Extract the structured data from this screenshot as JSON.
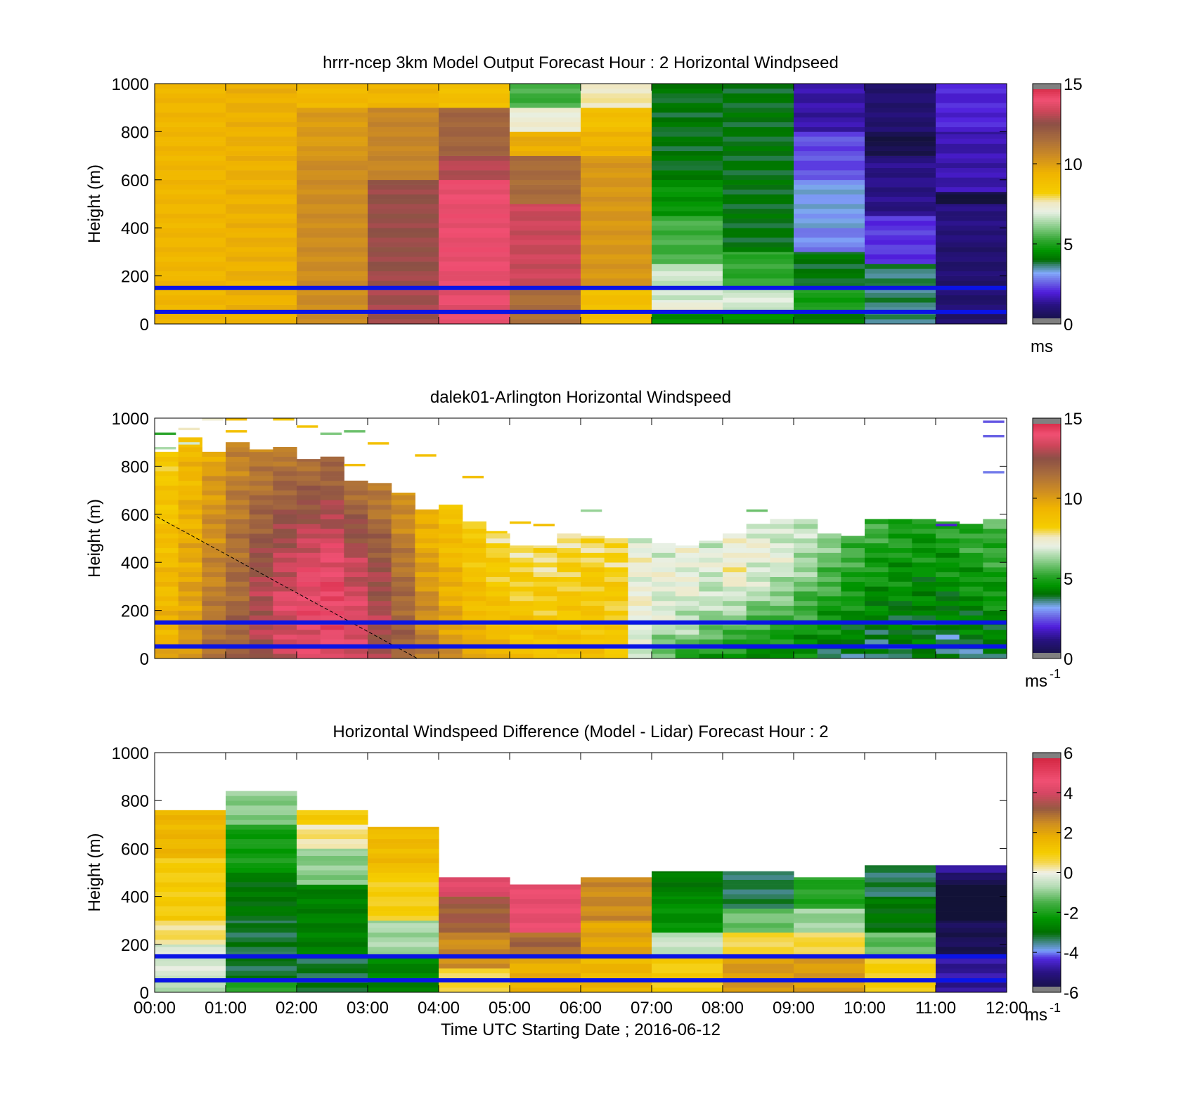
{
  "chart_data": [
    {
      "type": "heatmap",
      "title": "hrrr-ncep 3km Model Output   Forecast Hour : 2 Horizontal Windpseed",
      "ylabel": "Height (m)",
      "xlabel": "",
      "ylim": [
        0,
        1000
      ],
      "xlim_hours": [
        0,
        12
      ],
      "yticks": [
        "0",
        "200",
        "400",
        "600",
        "800",
        "1000"
      ],
      "colorbar": {
        "range": [
          0,
          15
        ],
        "ticks": [
          "0",
          "5",
          "10",
          "15"
        ],
        "unit": "ms",
        "unit_sup": ""
      },
      "reference_lines_m": [
        50,
        150
      ],
      "kind": "model",
      "columns": [
        {
          "hour": 0,
          "top_m": 1000,
          "segments": [
            [
              0,
              1000,
              9.3
            ]
          ]
        },
        {
          "hour": 1,
          "top_m": 1000,
          "segments": [
            [
              0,
              1000,
              9.5
            ]
          ]
        },
        {
          "hour": 2,
          "top_m": 1000,
          "segments": [
            [
              0,
              700,
              10.5
            ],
            [
              700,
              900,
              10.1
            ],
            [
              900,
              1000,
              9.2
            ]
          ]
        },
        {
          "hour": 3,
          "top_m": 1000,
          "segments": [
            [
              0,
              200,
              12.8
            ],
            [
              200,
              600,
              12.6
            ],
            [
              600,
              900,
              10.7
            ],
            [
              900,
              1000,
              9.3
            ]
          ]
        },
        {
          "hour": 4,
          "top_m": 1000,
          "segments": [
            [
              0,
              200,
              13.8
            ],
            [
              200,
              600,
              13.9
            ],
            [
              600,
              700,
              13.0
            ],
            [
              700,
              900,
              11.8
            ],
            [
              900,
              1000,
              8.9
            ]
          ]
        },
        {
          "hour": 5,
          "top_m": 1000,
          "segments": [
            [
              0,
              150,
              11.5
            ],
            [
              150,
              500,
              13.3
            ],
            [
              500,
              700,
              11.6
            ],
            [
              700,
              800,
              9.6
            ],
            [
              800,
              900,
              7.3
            ],
            [
              900,
              1000,
              5.4
            ]
          ]
        },
        {
          "hour": 6,
          "top_m": 1000,
          "segments": [
            [
              0,
              150,
              8.9
            ],
            [
              150,
              700,
              10.2
            ],
            [
              700,
              800,
              9.4
            ],
            [
              800,
              900,
              8.9
            ],
            [
              900,
              1000,
              7.6
            ]
          ]
        },
        {
          "hour": 7,
          "top_m": 1000,
          "segments": [
            [
              0,
              50,
              4.5
            ],
            [
              50,
              100,
              7.2
            ],
            [
              100,
              250,
              6.7
            ],
            [
              250,
              450,
              5.4
            ],
            [
              450,
              600,
              4.6
            ],
            [
              600,
              1000,
              4.0
            ]
          ]
        },
        {
          "hour": 8,
          "top_m": 1000,
          "segments": [
            [
              0,
              50,
              4.4
            ],
            [
              50,
              150,
              6.8
            ],
            [
              150,
              300,
              5.2
            ],
            [
              300,
              1000,
              4.0
            ]
          ]
        },
        {
          "hour": 9,
          "top_m": 1000,
          "segments": [
            [
              0,
              50,
              4.2
            ],
            [
              50,
              150,
              4.9
            ],
            [
              150,
              300,
              4.0
            ],
            [
              300,
              400,
              2.9
            ],
            [
              400,
              600,
              3.2
            ],
            [
              600,
              800,
              2.4
            ],
            [
              800,
              1000,
              1.5
            ]
          ]
        },
        {
          "hour": 10,
          "top_m": 1000,
          "segments": [
            [
              0,
              50,
              3.6
            ],
            [
              50,
              250,
              3.7
            ],
            [
              250,
              450,
              2.2
            ],
            [
              450,
              700,
              1.2
            ],
            [
              700,
              800,
              0.3
            ],
            [
              800,
              1000,
              0.9
            ]
          ]
        },
        {
          "hour": 11,
          "top_m": 1000,
          "segments": [
            [
              0,
              350,
              0.9
            ],
            [
              350,
              500,
              1.1
            ],
            [
              500,
              550,
              0.2
            ],
            [
              550,
              800,
              1.6
            ],
            [
              800,
              1000,
              2.0
            ]
          ]
        }
      ]
    },
    {
      "type": "heatmap",
      "title": "dalek01-Arlington  Horizontal Windspeed",
      "ylabel": "Height (m)",
      "xlabel": "",
      "ylim": [
        0,
        1000
      ],
      "xlim_hours": [
        0,
        12
      ],
      "yticks": [
        "0",
        "200",
        "400",
        "600",
        "800",
        "1000"
      ],
      "colorbar": {
        "range": [
          0,
          15
        ],
        "ticks": [
          "0",
          "5",
          "10",
          "15"
        ],
        "unit": "ms",
        "unit_sup": "-1"
      },
      "reference_lines_m": [
        50,
        150
      ],
      "kind": "lidar",
      "lidar_tops_m": [
        860,
        920,
        860,
        900,
        870,
        880,
        830,
        840,
        740,
        730,
        690,
        620,
        640,
        570,
        520,
        470,
        470,
        520,
        510,
        500,
        500,
        480,
        470,
        490,
        520,
        560,
        580,
        580,
        520,
        510,
        580,
        580,
        580,
        570,
        560,
        580
      ],
      "lidar_profile": [
        [
          9.6,
          9.2,
          9.0,
          8.6,
          8.4
        ],
        [
          10.2,
          9.9,
          9.6,
          9.3,
          9.1
        ],
        [
          11.4,
          11.0,
          10.6,
          10.2,
          9.8
        ],
        [
          12.0,
          11.7,
          11.4,
          11.0,
          10.6
        ],
        [
          12.8,
          13.0,
          12.4,
          11.6,
          10.8
        ],
        [
          13.2,
          13.6,
          13.0,
          12.0,
          11.0
        ],
        [
          13.5,
          14.0,
          13.6,
          12.4,
          11.3
        ],
        [
          13.6,
          14.2,
          13.8,
          12.6,
          11.4
        ],
        [
          13.3,
          13.6,
          13.2,
          12.3,
          11.2
        ],
        [
          12.8,
          12.8,
          12.6,
          11.6,
          10.8
        ],
        [
          12.0,
          11.8,
          11.4,
          10.8,
          10.2
        ],
        [
          11.2,
          10.6,
          10.2,
          9.6,
          9.2
        ],
        [
          10.4,
          9.8,
          9.4,
          9.0,
          8.8
        ],
        [
          9.8,
          9.2,
          8.9,
          8.6,
          8.4
        ],
        [
          9.4,
          8.9,
          8.6,
          8.2,
          8.0
        ],
        [
          9.0,
          8.7,
          8.4,
          8.1,
          7.9
        ],
        [
          9.0,
          8.6,
          8.4,
          8.0,
          7.8
        ],
        [
          8.8,
          8.6,
          8.4,
          8.1,
          7.8
        ],
        [
          8.8,
          8.6,
          8.5,
          8.2,
          7.8
        ],
        [
          8.4,
          8.4,
          8.3,
          8.2,
          7.6
        ],
        [
          6.6,
          7.0,
          7.3,
          7.2,
          7.0
        ],
        [
          5.6,
          6.6,
          7.0,
          7.1,
          6.9
        ],
        [
          5.2,
          6.4,
          6.9,
          7.2,
          7.0
        ],
        [
          4.8,
          6.0,
          6.6,
          6.9,
          6.8
        ],
        [
          4.6,
          5.8,
          7.0,
          7.6,
          7.0
        ],
        [
          4.3,
          5.4,
          6.6,
          7.2,
          6.8
        ],
        [
          4.2,
          5.2,
          6.4,
          7.0,
          6.6
        ],
        [
          4.4,
          5.0,
          5.8,
          6.6,
          6.4
        ],
        [
          4.0,
          4.6,
          5.2,
          5.8,
          6.0
        ],
        [
          3.8,
          4.4,
          4.8,
          5.2,
          5.6
        ],
        [
          3.6,
          4.2,
          4.6,
          5.0,
          5.4
        ],
        [
          3.8,
          4.1,
          4.5,
          4.8,
          5.2
        ],
        [
          4.0,
          4.0,
          4.4,
          4.7,
          5.0
        ],
        [
          3.6,
          4.0,
          4.4,
          4.8,
          5.1
        ],
        [
          3.8,
          4.2,
          4.6,
          5.0,
          5.3
        ],
        [
          4.0,
          4.4,
          4.8,
          5.2,
          5.6
        ]
      ],
      "lidar_fragments": [
        [
          0,
          930,
          5.2
        ],
        [
          0,
          870,
          6.4
        ],
        [
          1,
          950,
          7.6
        ],
        [
          1,
          890,
          6.8
        ],
        [
          2,
          990,
          7.4
        ],
        [
          3,
          990,
          9.0
        ],
        [
          3,
          940,
          8.8
        ],
        [
          5,
          990,
          8.6
        ],
        [
          6,
          960,
          8.7
        ],
        [
          7,
          930,
          6.0
        ],
        [
          8,
          940,
          5.8
        ],
        [
          9,
          890,
          8.8
        ],
        [
          8,
          800,
          8.9
        ],
        [
          11,
          840,
          8.8
        ],
        [
          13,
          750,
          8.9
        ],
        [
          15,
          560,
          8.7
        ],
        [
          14,
          520,
          8.2
        ],
        [
          16,
          550,
          8.9
        ],
        [
          18,
          610,
          6.2
        ],
        [
          25,
          610,
          5.8
        ],
        [
          35,
          980,
          2.5
        ],
        [
          35,
          920,
          2.6
        ],
        [
          35,
          770,
          2.8
        ],
        [
          33,
          550,
          1.9
        ]
      ],
      "dashed_line_hours_m": [
        [
          0.03,
          590
        ],
        [
          3.7,
          0
        ]
      ]
    },
    {
      "type": "heatmap",
      "title": "Horizontal Windspeed Difference (Model - Lidar) Forecast Hour : 2",
      "ylabel": "Height (m)",
      "xlabel": "Time UTC  Starting Date ; 2016-06-12",
      "ylim": [
        0,
        1000
      ],
      "xlim_hours": [
        0,
        12
      ],
      "yticks": [
        "0",
        "200",
        "400",
        "600",
        "800",
        "1000"
      ],
      "xticks": [
        "00:00",
        "01:00",
        "02:00",
        "03:00",
        "04:00",
        "05:00",
        "06:00",
        "07:00",
        "08:00",
        "09:00",
        "10:00",
        "11:00",
        "12:00"
      ],
      "colorbar": {
        "range": [
          -6,
          6
        ],
        "ticks": [
          "-6",
          "-4",
          "-2",
          "0",
          "2",
          "4",
          "6"
        ],
        "unit": "ms",
        "unit_sup": "-1"
      },
      "reference_lines_m": [
        50,
        150
      ],
      "kind": "difference",
      "columns": [
        {
          "hour": 0,
          "top_m": 760,
          "segments": [
            [
              0,
              50,
              -0.8
            ],
            [
              50,
              200,
              -0.3
            ],
            [
              200,
              300,
              0.4
            ],
            [
              300,
              560,
              1.0
            ],
            [
              560,
              760,
              1.6
            ]
          ]
        },
        {
          "hour": 1,
          "top_m": 840,
          "segments": [
            [
              0,
              50,
              -1.8
            ],
            [
              50,
              300,
              -3.2
            ],
            [
              300,
              500,
              -2.9
            ],
            [
              500,
              700,
              -2.1
            ],
            [
              700,
              840,
              -1.0
            ]
          ]
        },
        {
          "hour": 2,
          "top_m": 760,
          "segments": [
            [
              0,
              150,
              -3.2
            ],
            [
              150,
              450,
              -2.7
            ],
            [
              450,
              600,
              -1.0
            ],
            [
              600,
              700,
              0.3
            ],
            [
              700,
              760,
              1.0
            ]
          ]
        },
        {
          "hour": 3,
          "top_m": 690,
          "segments": [
            [
              0,
              150,
              -2.6
            ],
            [
              150,
              300,
              -0.8
            ],
            [
              300,
              500,
              0.9
            ],
            [
              500,
              690,
              1.5
            ]
          ]
        },
        {
          "hour": 4,
          "top_m": 480,
          "segments": [
            [
              0,
              100,
              0.6
            ],
            [
              100,
              250,
              2.5
            ],
            [
              250,
              400,
              3.2
            ],
            [
              400,
              480,
              4.2
            ]
          ]
        },
        {
          "hour": 5,
          "top_m": 450,
          "segments": [
            [
              0,
              150,
              1.8
            ],
            [
              150,
              250,
              3.0
            ],
            [
              250,
              450,
              4.4
            ]
          ]
        },
        {
          "hour": 6,
          "top_m": 480,
          "segments": [
            [
              0,
              150,
              1.6
            ],
            [
              150,
              300,
              2.0
            ],
            [
              300,
              480,
              2.5
            ]
          ]
        },
        {
          "hour": 7,
          "top_m": 505,
          "segments": [
            [
              0,
              150,
              1.0
            ],
            [
              150,
              250,
              -0.5
            ],
            [
              250,
              400,
              -2.4
            ],
            [
              400,
              505,
              -2.8
            ]
          ]
        },
        {
          "hour": 8,
          "top_m": 505,
          "segments": [
            [
              0,
              150,
              2.2
            ],
            [
              150,
              250,
              0.6
            ],
            [
              250,
              350,
              -1.2
            ],
            [
              350,
              505,
              -3.3
            ]
          ]
        },
        {
          "hour": 9,
          "top_m": 480,
          "segments": [
            [
              0,
              150,
              2.2
            ],
            [
              150,
              250,
              0.6
            ],
            [
              250,
              350,
              -0.9
            ],
            [
              350,
              480,
              -1.9
            ]
          ]
        },
        {
          "hour": 10,
          "top_m": 530,
          "segments": [
            [
              0,
              150,
              0.9
            ],
            [
              150,
              250,
              -1.3
            ],
            [
              250,
              400,
              -2.9
            ],
            [
              400,
              530,
              -3.3
            ]
          ]
        },
        {
          "hour": 11,
          "top_m": 530,
          "segments": [
            [
              0,
              150,
              -4.8
            ],
            [
              150,
              300,
              -5.6
            ],
            [
              300,
              450,
              -6.2
            ],
            [
              450,
              500,
              -5.5
            ],
            [
              500,
              530,
              -4.6
            ]
          ]
        }
      ]
    }
  ]
}
